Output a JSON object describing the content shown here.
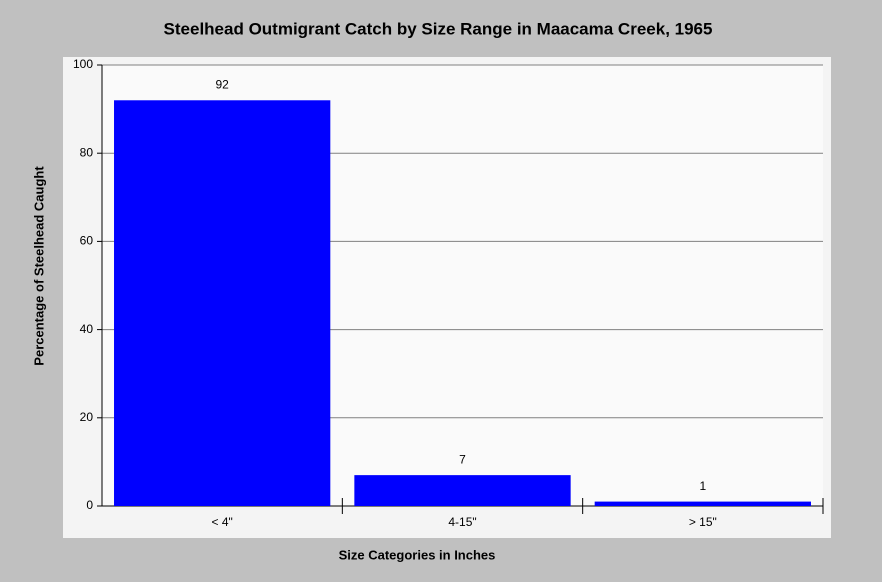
{
  "chart_data": {
    "type": "bar",
    "title": "Steelhead Outmigrant Catch by Size Range in Maacama Creek, 1965",
    "x_label": "Size Categories in Inches",
    "y_label": "Percentage of Steelhead Caught",
    "categories": [
      "< 4\"",
      "4-15\"",
      "> 15\""
    ],
    "values": [
      92,
      7,
      1
    ],
    "color": "#0000ff",
    "ylim": [
      0,
      100
    ],
    "yticks": [
      0,
      20,
      40,
      60,
      80,
      100
    ],
    "grid": true
  }
}
